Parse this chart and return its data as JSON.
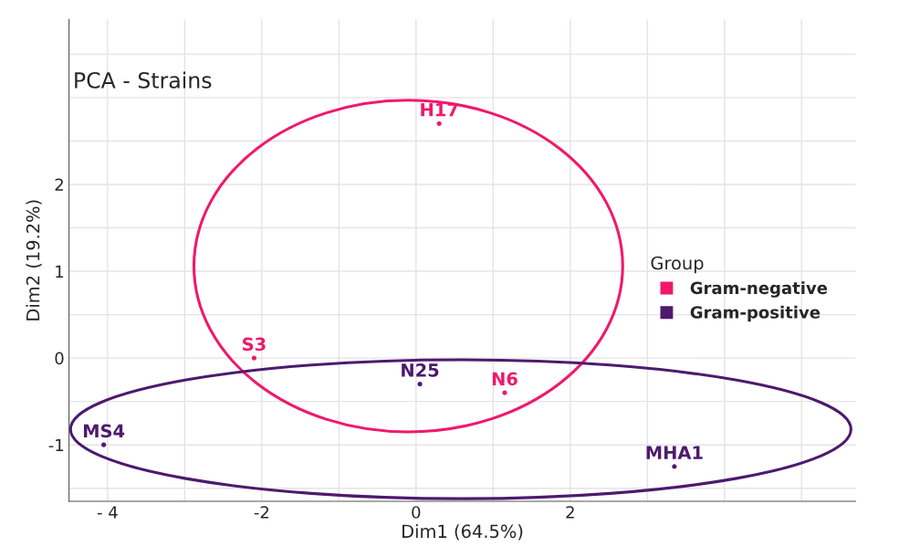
{
  "chart_data": {
    "type": "scatter",
    "title": "PCA - Strains",
    "xlabel": "Dim1 (64.5%)",
    "ylabel": "Dim2 (19.2%)",
    "legend_title": "Group",
    "legend": "right",
    "grid": true,
    "marker": "circle",
    "xlim": [
      -4.5,
      5.7
    ],
    "ylim": [
      -1.65,
      3.9
    ],
    "xticks": [
      {
        "value": -4,
        "label": "- 4"
      },
      {
        "value": -3,
        "label": null
      },
      -2,
      {
        "value": -1,
        "label": null
      },
      0,
      {
        "value": 1,
        "label": null
      },
      2,
      {
        "value": 3,
        "label": null
      },
      {
        "value": 4,
        "label": null
      },
      {
        "value": 5,
        "label": null
      }
    ],
    "yticks": [
      {
        "value": -1.5,
        "label": null
      },
      -1,
      {
        "value": -0.5,
        "label": null
      },
      0,
      {
        "value": 0.5,
        "label": null
      },
      1,
      {
        "value": 1.5,
        "label": null
      },
      2,
      {
        "value": 2.5,
        "label": null
      },
      {
        "value": 3,
        "label": null
      },
      {
        "value": 3.5,
        "label": null
      }
    ],
    "series": [
      {
        "name": "Gram-negative",
        "color": "#f0186c",
        "x": [
          0.3,
          -2.1,
          1.15
        ],
        "values": [
          2.7,
          0.0,
          -0.4
        ],
        "value_labels": [
          "H17",
          "S3",
          "N6"
        ]
      },
      {
        "name": "Gram-positive",
        "color": "#4d1a6e",
        "x": [
          0.05,
          -4.05,
          3.35
        ],
        "values": [
          -0.3,
          -1.0,
          -1.25
        ],
        "value_labels": [
          "N25",
          "MS4",
          "MHA1"
        ]
      }
    ]
  }
}
